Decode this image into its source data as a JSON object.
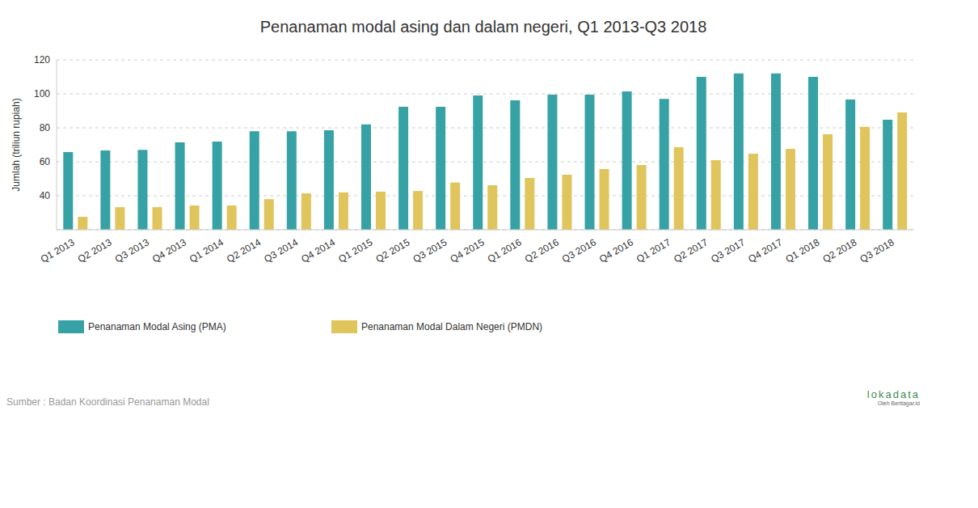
{
  "chart_data": {
    "type": "bar",
    "title": "Penanaman modal asing dan dalam negeri, Q1 2013-Q3 2018",
    "y_label": "Jumlah (triliun rupiah)",
    "categories": [
      "Q1 2013",
      "Q2 2013",
      "Q3 2013",
      "Q4 2013",
      "Q1 2014",
      "Q2 2014",
      "Q3 2014",
      "Q4 2014",
      "Q1 2015",
      "Q2 2015",
      "Q3 2015",
      "Q4 2015",
      "Q1 2016",
      "Q2 2016",
      "Q3 2016",
      "Q4 2016",
      "Q1 2017",
      "Q2 2017",
      "Q3 2017",
      "Q4 2017",
      "Q1 2018",
      "Q2 2018",
      "Q3 2018"
    ],
    "series": [
      {
        "name": "Penanaman Modal Asing (PMA)",
        "color": "#37a2a6",
        "values": [
          65.7,
          66.7,
          67,
          71.4,
          71.9,
          78,
          78,
          78.6,
          82,
          92.4,
          92.4,
          99,
          96.2,
          99.5,
          99.5,
          101.4,
          97,
          110,
          112,
          112,
          110,
          96.7,
          84.8
        ]
      },
      {
        "name": "Penanaman Modal Dalam Negeri (PMDN)",
        "color": "#e0c45c",
        "values": [
          27.6,
          33.3,
          33.3,
          34.3,
          34.3,
          38,
          41.4,
          42,
          42.4,
          42.8,
          47.8,
          46.2,
          50.5,
          52.4,
          55.7,
          58.1,
          68.6,
          61,
          64.8,
          67.6,
          76.2,
          80.6,
          89.1
        ]
      }
    ],
    "ylim": [
      20,
      120
    ],
    "yticks": [
      40,
      60,
      80,
      100,
      120
    ],
    "grid": true,
    "legend": "bottom",
    "annotations": [
      "Sumber : Badan Koordinasi Penanaman Modal",
      "lokadata",
      "Oleh Beritagar.id"
    ]
  }
}
